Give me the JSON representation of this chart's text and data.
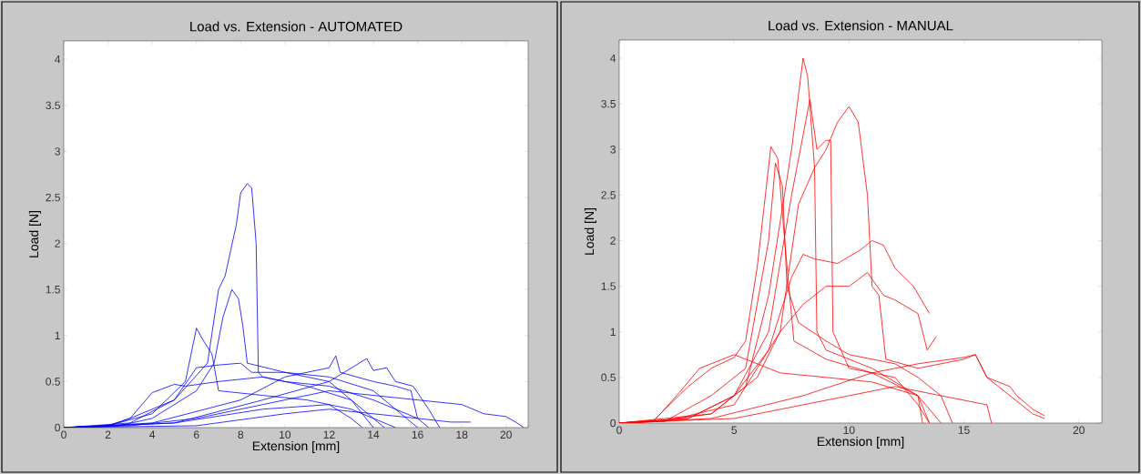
{
  "chart_data": [
    {
      "type": "line",
      "title": "Load vs. Extension - AUTOMATED",
      "xlabel": "Extension [mm]",
      "ylabel": "Load [N]",
      "xlim": [
        0,
        21
      ],
      "ylim": [
        0,
        4.2
      ],
      "xticks": [
        0,
        2,
        4,
        6,
        8,
        10,
        12,
        14,
        16,
        18,
        20
      ],
      "yticks": [
        0,
        0.5,
        1,
        1.5,
        2,
        2.5,
        3,
        3.5,
        4
      ],
      "series": [
        {
          "color": "#0000ff",
          "x": [
            0,
            2,
            3,
            5,
            6.5,
            7,
            7.3,
            7.8,
            8.0,
            8.3,
            8.5,
            8.7,
            8.8,
            9,
            10,
            12,
            14,
            16,
            16.5
          ],
          "values": [
            0,
            0.02,
            0.1,
            0.3,
            0.7,
            1.5,
            1.65,
            2.2,
            2.55,
            2.65,
            2.6,
            2.0,
            0.6,
            0.55,
            0.5,
            0.45,
            0.3,
            0.1,
            0
          ]
        },
        {
          "color": "#0000ff",
          "x": [
            0,
            2.5,
            4,
            6,
            6.8,
            7.2,
            7.6,
            7.9,
            8.1,
            8.3,
            10,
            12,
            14,
            15.5,
            16
          ],
          "values": [
            0,
            0.02,
            0.1,
            0.4,
            0.7,
            1.2,
            1.5,
            1.4,
            1.1,
            0.7,
            0.6,
            0.55,
            0.4,
            0.1,
            0
          ]
        },
        {
          "color": "#0000ff",
          "x": [
            0,
            2,
            4,
            5.5,
            6,
            6.3,
            6.7,
            7,
            9,
            11,
            13,
            15
          ],
          "values": [
            0,
            0.02,
            0.15,
            0.5,
            1.08,
            0.95,
            0.8,
            0.4,
            0.35,
            0.3,
            0.2,
            0
          ]
        },
        {
          "color": "#0000ff",
          "x": [
            0,
            2,
            3,
            4,
            5,
            5.5,
            7,
            9,
            11,
            13,
            14,
            14.5
          ],
          "values": [
            0,
            0.02,
            0.1,
            0.38,
            0.47,
            0.45,
            0.5,
            0.55,
            0.45,
            0.3,
            0.1,
            0
          ]
        },
        {
          "color": "#0000ff",
          "x": [
            0,
            3,
            5,
            6,
            7,
            8,
            8.5,
            10,
            12,
            13,
            14
          ],
          "values": [
            0,
            0.05,
            0.3,
            0.65,
            0.68,
            0.7,
            0.6,
            0.6,
            0.5,
            0.3,
            0
          ]
        },
        {
          "color": "#0000ff",
          "x": [
            0,
            3,
            6,
            9,
            12,
            14,
            16,
            18,
            19,
            20,
            20.5,
            20.8
          ],
          "values": [
            0,
            0.02,
            0.1,
            0.25,
            0.4,
            0.35,
            0.3,
            0.25,
            0.15,
            0.12,
            0.05,
            0
          ]
        },
        {
          "color": "#0000ff",
          "x": [
            0,
            4,
            8,
            10,
            12,
            12.3,
            12.5,
            14,
            15,
            15.7,
            16
          ],
          "values": [
            0,
            0.05,
            0.3,
            0.55,
            0.65,
            0.78,
            0.6,
            0.5,
            0.45,
            0.4,
            0.1
          ]
        },
        {
          "color": "#0000ff",
          "x": [
            0,
            5,
            9,
            12,
            13.7,
            14,
            14.6,
            15,
            15.8,
            16.5,
            17
          ],
          "values": [
            0,
            0.05,
            0.3,
            0.5,
            0.75,
            0.62,
            0.65,
            0.5,
            0.45,
            0.2,
            0
          ]
        },
        {
          "color": "#0000ff",
          "x": [
            0,
            6,
            10,
            12,
            14,
            16,
            17.5,
            18.4
          ],
          "values": [
            0,
            0.02,
            0.15,
            0.2,
            0.15,
            0.1,
            0.06,
            0.06
          ]
        },
        {
          "color": "#0000ff",
          "x": [
            0,
            5,
            9,
            12,
            13,
            13.5
          ],
          "values": [
            0,
            0.05,
            0.2,
            0.25,
            0.1,
            0
          ]
        }
      ]
    },
    {
      "type": "line",
      "title": "Load vs. Extension - MANUAL",
      "xlabel": "Extension [mm]",
      "ylabel": "Load [N]",
      "xlim": [
        0,
        21
      ],
      "ylim": [
        0,
        4.2
      ],
      "xticks": [
        0,
        5,
        10,
        15,
        20
      ],
      "yticks": [
        0,
        0.5,
        1,
        1.5,
        2,
        2.5,
        3,
        3.5,
        4
      ],
      "series": [
        {
          "color": "#ff0000",
          "x": [
            0,
            1.5,
            4,
            5.5,
            6.5,
            7.5,
            8,
            8.2,
            8.5,
            8.6,
            9,
            11,
            13,
            14
          ],
          "values": [
            0,
            0.02,
            0.1,
            0.4,
            1.4,
            3.0,
            4.0,
            3.8,
            2.8,
            1.0,
            0.8,
            0.6,
            0.3,
            0
          ]
        },
        {
          "color": "#ff0000",
          "x": [
            0,
            2,
            5,
            7,
            7.8,
            8.5,
            9,
            9.5,
            10,
            10.4,
            10.8,
            11,
            11.3,
            11.6,
            13,
            15,
            15.5,
            16,
            17,
            18,
            18.5
          ],
          "values": [
            0,
            0.02,
            0.2,
            1.0,
            2.4,
            2.8,
            3.0,
            3.3,
            3.47,
            3.3,
            2.5,
            1.5,
            1.4,
            0.7,
            0.6,
            0.7,
            0.75,
            0.5,
            0.3,
            0.1,
            0.05
          ]
        },
        {
          "color": "#ff0000",
          "x": [
            0,
            1.5,
            3,
            4,
            5,
            5.5,
            6,
            6.6,
            6.9,
            7.2,
            7.6,
            9,
            11,
            13,
            13.5
          ],
          "values": [
            0,
            0.03,
            0.4,
            0.6,
            0.72,
            0.9,
            1.7,
            3.03,
            2.9,
            2.0,
            0.9,
            0.7,
            0.55,
            0.3,
            0
          ]
        },
        {
          "color": "#ff0000",
          "x": [
            0,
            2,
            4,
            5.5,
            6.5,
            6.8,
            7.1,
            7.3,
            7.8,
            9,
            10,
            12,
            13,
            14,
            14.5
          ],
          "values": [
            0,
            0.02,
            0.3,
            0.6,
            2.0,
            2.85,
            2.6,
            1.5,
            1.1,
            0.9,
            0.75,
            0.65,
            0.5,
            0.3,
            0
          ]
        },
        {
          "color": "#ff0000",
          "x": [
            0,
            3,
            5,
            6.5,
            7.5,
            8.3,
            8.6,
            9,
            9.2,
            9.3,
            10,
            12,
            13,
            13.5
          ],
          "values": [
            0,
            0.05,
            0.3,
            1.0,
            2.5,
            3.55,
            3.0,
            3.1,
            3.1,
            1.0,
            0.6,
            0.5,
            0.2,
            0
          ]
        },
        {
          "color": "#ff0000",
          "x": [
            0,
            3,
            5,
            6.5,
            7.5,
            8,
            8.5,
            9.5,
            10.5,
            11,
            11.5,
            12,
            12.8,
            13.5
          ],
          "values": [
            0,
            0.05,
            0.3,
            0.8,
            1.6,
            1.85,
            1.8,
            1.75,
            1.9,
            2.0,
            1.95,
            1.7,
            1.5,
            1.2
          ]
        },
        {
          "color": "#ff0000",
          "x": [
            0,
            4,
            6,
            7,
            8,
            9,
            10,
            10.8,
            11.5,
            12,
            13,
            13.4,
            13.8
          ],
          "values": [
            0,
            0.1,
            0.5,
            1.0,
            1.3,
            1.5,
            1.5,
            1.65,
            1.4,
            1.35,
            1.2,
            0.8,
            0.95
          ]
        },
        {
          "color": "#ff0000",
          "x": [
            0,
            1.5,
            2.5,
            3.5,
            4.5,
            5,
            5.5,
            7,
            9,
            11,
            13,
            13.2
          ],
          "values": [
            0,
            0.02,
            0.3,
            0.6,
            0.7,
            0.75,
            0.7,
            0.55,
            0.5,
            0.45,
            0.3,
            0
          ]
        },
        {
          "color": "#ff0000",
          "x": [
            0,
            4,
            8,
            11,
            13,
            15,
            15.5,
            16,
            17,
            17.3,
            18,
            18.5
          ],
          "values": [
            0,
            0.05,
            0.3,
            0.55,
            0.65,
            0.72,
            0.75,
            0.5,
            0.4,
            0.3,
            0.15,
            0.08
          ]
        },
        {
          "color": "#ff0000",
          "x": [
            0,
            5,
            10,
            12,
            14,
            16,
            16.2
          ],
          "values": [
            0,
            0.05,
            0.3,
            0.4,
            0.3,
            0.2,
            0
          ]
        }
      ]
    }
  ]
}
